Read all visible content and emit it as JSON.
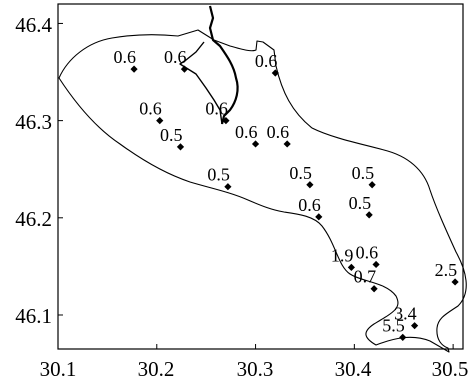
{
  "map": {
    "axes": {
      "x_ticks": [
        "30.1",
        "30.2",
        "30.3",
        "30.4",
        "30.5"
      ],
      "y_ticks": [
        "46.4",
        "46.3",
        "46.2",
        "46.1"
      ],
      "xlim": [
        30.1,
        30.51
      ],
      "ylim": [
        46.065,
        46.42
      ]
    },
    "colors": {
      "ink": "#000000",
      "background": "#ffffff"
    },
    "marker_shape": "diamond",
    "stations": [
      {
        "label": "0.6",
        "lon": 30.177,
        "lat": 46.353
      },
      {
        "label": "0.6",
        "lon": 30.228,
        "lat": 46.353
      },
      {
        "label": "0.6",
        "lon": 30.32,
        "lat": 46.349
      },
      {
        "label": "0.6",
        "lon": 30.203,
        "lat": 46.3
      },
      {
        "label": "0.6",
        "lon": 30.27,
        "lat": 46.3
      },
      {
        "label": "0.5",
        "lon": 30.224,
        "lat": 46.273
      },
      {
        "label": "0.6",
        "lon": 30.3,
        "lat": 46.276
      },
      {
        "label": "0.6",
        "lon": 30.332,
        "lat": 46.276
      },
      {
        "label": "0.5",
        "lon": 30.272,
        "lat": 46.232
      },
      {
        "label": "0.5",
        "lon": 30.355,
        "lat": 46.234
      },
      {
        "label": "0.5",
        "lon": 30.418,
        "lat": 46.234
      },
      {
        "label": "0.6",
        "lon": 30.364,
        "lat": 46.201
      },
      {
        "label": "0.5",
        "lon": 30.415,
        "lat": 46.203
      },
      {
        "label": "1.9",
        "lon": 30.397,
        "lat": 46.149
      },
      {
        "label": "0.6",
        "lon": 30.422,
        "lat": 46.152
      },
      {
        "label": "0.7",
        "lon": 30.42,
        "lat": 46.127
      },
      {
        "label": "2.5",
        "lon": 30.502,
        "lat": 46.134
      },
      {
        "label": "3.4",
        "lon": 30.461,
        "lat": 46.089
      },
      {
        "label": "5.5",
        "lon": 30.449,
        "lat": 46.077
      }
    ]
  }
}
